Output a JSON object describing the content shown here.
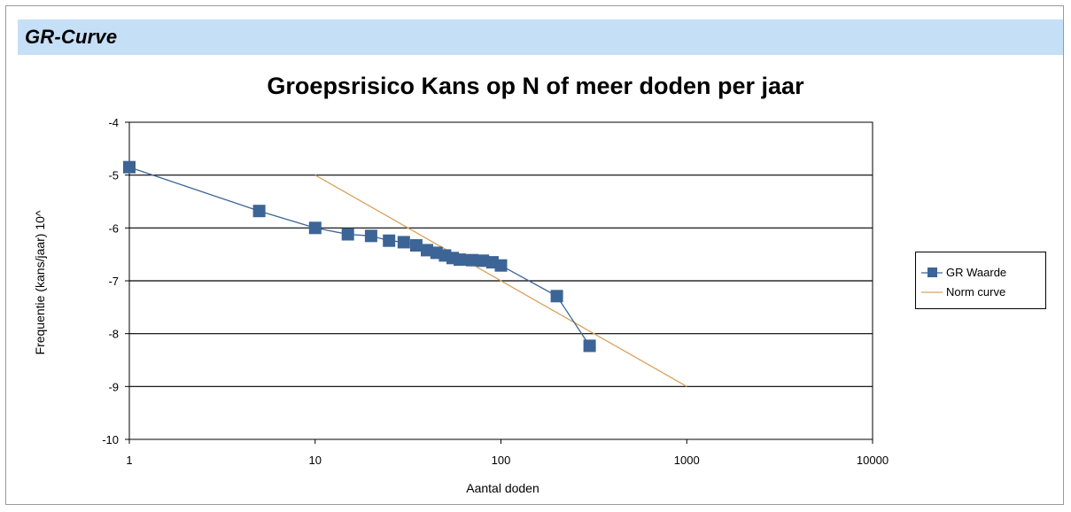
{
  "section": {
    "title": "GR-Curve"
  },
  "colors": {
    "header_bg": "#c5dff7",
    "gr_series": "#3c6496",
    "norm_series": "#d9a25c"
  },
  "chart_data": {
    "type": "line",
    "title": "Groepsrisico Kans op N of meer doden per jaar",
    "xlabel": "Aantal doden",
    "ylabel": "Frequentie (kans/jaar) 10^",
    "x_scale": "log",
    "xlim": [
      1,
      10000
    ],
    "ylim": [
      -10,
      -4
    ],
    "x_ticks": [
      "1",
      "10",
      "100",
      "1000",
      "10000"
    ],
    "y_ticks": [
      "-4",
      "-5",
      "-6",
      "-7",
      "-8",
      "-9",
      "-10"
    ],
    "grid": "horizontal",
    "legend_position": "right",
    "series": [
      {
        "name": "GR Waarde",
        "marker": "square",
        "x": [
          1,
          5,
          10,
          15,
          20,
          25,
          30,
          35,
          40,
          45,
          50,
          55,
          60,
          70,
          80,
          90,
          100,
          200,
          300
        ],
        "y": [
          -4.85,
          -5.68,
          -6.0,
          -6.12,
          -6.15,
          -6.24,
          -6.27,
          -6.33,
          -6.42,
          -6.47,
          -6.52,
          -6.57,
          -6.6,
          -6.61,
          -6.62,
          -6.65,
          -6.71,
          -7.29,
          -8.23
        ]
      },
      {
        "name": "Norm curve",
        "marker": "none",
        "x": [
          10,
          1000
        ],
        "y": [
          -5,
          -9
        ]
      }
    ]
  }
}
